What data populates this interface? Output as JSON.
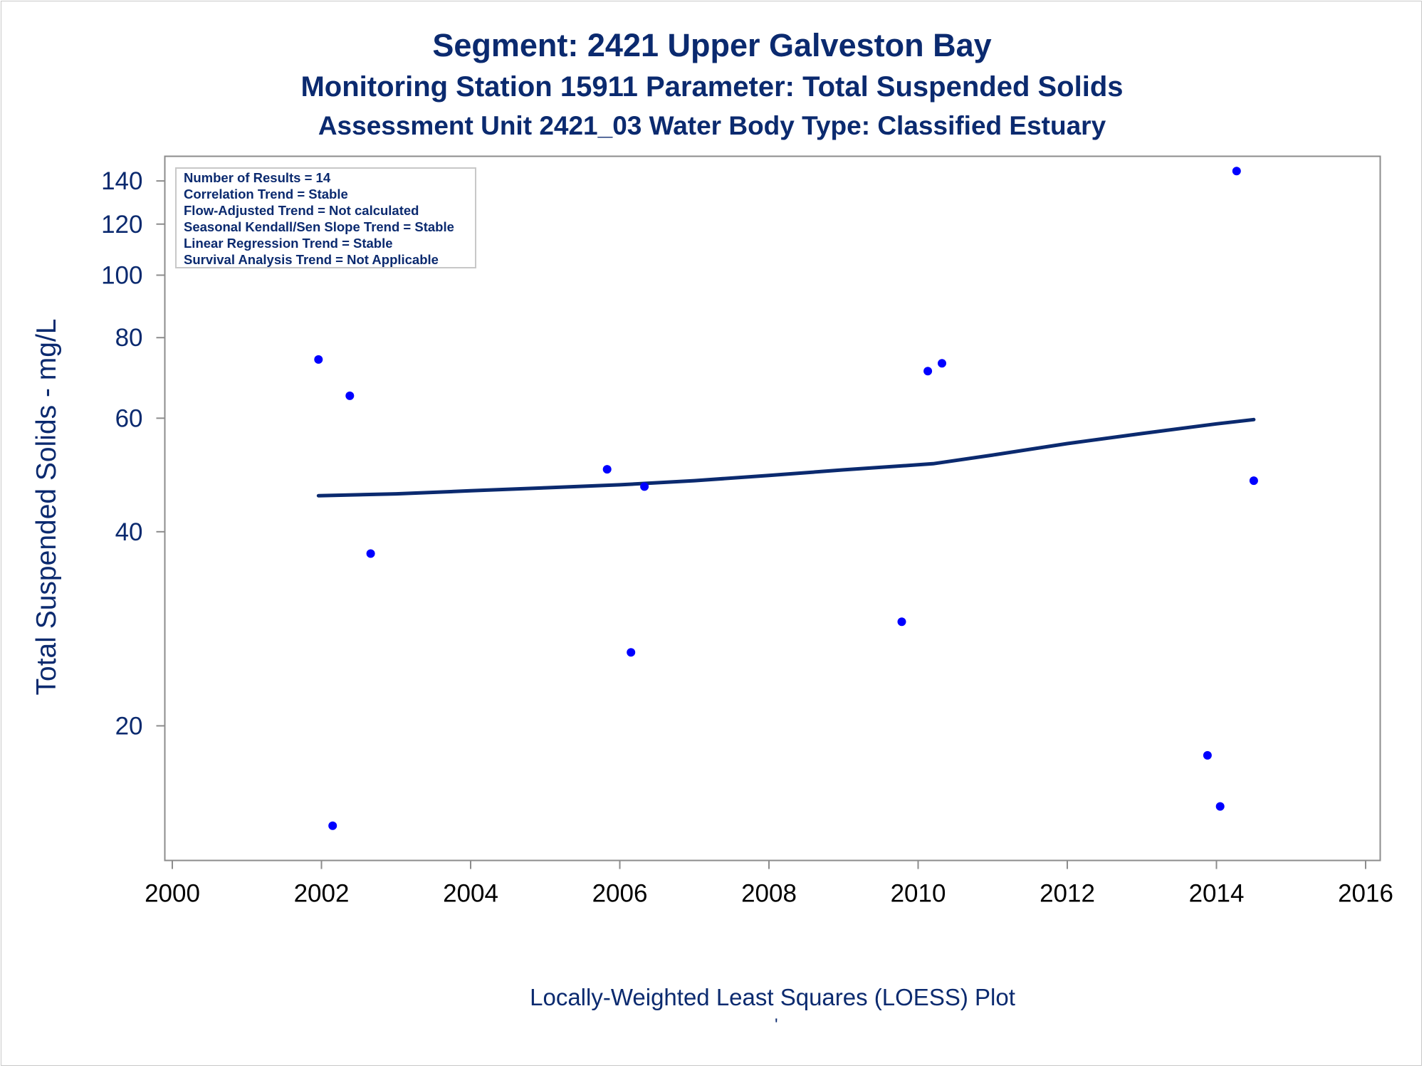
{
  "colors": {
    "text": "#0b2a6f",
    "line": "#0b2a6f",
    "points": "#0000ff",
    "frame": "#8c8c8c"
  },
  "titles": {
    "line1": "Segment: 2421  Upper Galveston Bay",
    "line2": "Monitoring Station 15911 Parameter: Total Suspended Solids",
    "line3": "Assessment Unit 2421_03   Water Body Type: Classified Estuary"
  },
  "stats_box": [
    "Number of Results = 14",
    "Correlation Trend = Stable",
    "Flow-Adjusted Trend = Not calculated",
    "Seasonal Kendall/Sen Slope Trend = Stable",
    "Linear Regression Trend = Stable",
    "Survival Analysis Trend = Not Applicable"
  ],
  "footnote": "Locally-Weighted Least Squares (LOESS) Plot",
  "footnote_mark": "'",
  "chart_data": {
    "type": "scatter",
    "ylabel": "Total Suspended Solids - mg/L",
    "xlabel": "",
    "y_scale": "log",
    "xlim": [
      2000,
      2016
    ],
    "ylim": [
      13.5,
      150
    ],
    "x_ticks": [
      2000,
      2002,
      2004,
      2006,
      2008,
      2010,
      2012,
      2014,
      2016
    ],
    "y_ticks": [
      20,
      40,
      60,
      80,
      100,
      120,
      140
    ],
    "grid": false,
    "points": [
      {
        "x": 2001.96,
        "y": 74
      },
      {
        "x": 2002.15,
        "y": 14
      },
      {
        "x": 2002.38,
        "y": 65
      },
      {
        "x": 2002.66,
        "y": 37
      },
      {
        "x": 2005.83,
        "y": 50
      },
      {
        "x": 2006.15,
        "y": 26
      },
      {
        "x": 2006.33,
        "y": 47
      },
      {
        "x": 2009.78,
        "y": 29
      },
      {
        "x": 2010.13,
        "y": 71
      },
      {
        "x": 2010.32,
        "y": 73
      },
      {
        "x": 2013.88,
        "y": 18
      },
      {
        "x": 2014.05,
        "y": 15
      },
      {
        "x": 2014.27,
        "y": 145
      },
      {
        "x": 2014.5,
        "y": 48
      }
    ],
    "loess": {
      "x": [
        2001.96,
        2003.0,
        2004.0,
        2005.0,
        2006.0,
        2007.0,
        2008.0,
        2009.0,
        2010.2,
        2011.0,
        2012.0,
        2013.0,
        2014.0,
        2014.5
      ],
      "y": [
        45.5,
        45.8,
        46.3,
        46.8,
        47.3,
        48.0,
        48.9,
        49.9,
        51.0,
        52.6,
        54.8,
        56.8,
        58.8,
        59.7
      ]
    }
  }
}
